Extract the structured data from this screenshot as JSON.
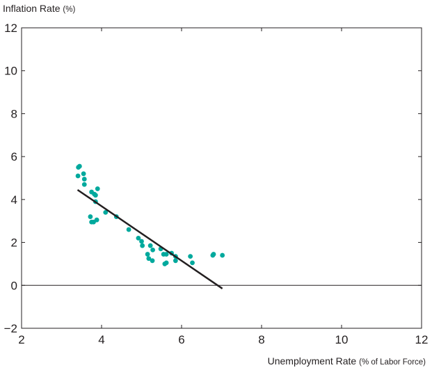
{
  "chart_data": {
    "type": "scatter",
    "ylabel": "Inflation Rate",
    "ylabel_unit": "(%)",
    "xlabel": "Unemployment Rate",
    "xlabel_unit": "(% of Labor Force)",
    "xlim": [
      2,
      12
    ],
    "ylim": [
      -2,
      12
    ],
    "x_ticks": [
      2,
      4,
      6,
      8,
      10,
      12
    ],
    "y_ticks": [
      -2,
      0,
      2,
      4,
      6,
      8,
      10,
      12
    ],
    "x_tick_labels": [
      "2",
      "4",
      "6",
      "8",
      "10",
      "12"
    ],
    "y_tick_labels": [
      "−2",
      "0",
      "2",
      "4",
      "6",
      "8",
      "10",
      "12"
    ],
    "grid": false,
    "zero_line": true,
    "point_color": "#00a99d",
    "line_color": "#231f20",
    "points": [
      {
        "x": 3.45,
        "y": 5.55
      },
      {
        "x": 3.42,
        "y": 5.5
      },
      {
        "x": 3.41,
        "y": 5.1
      },
      {
        "x": 3.55,
        "y": 5.2
      },
      {
        "x": 3.57,
        "y": 4.95
      },
      {
        "x": 3.57,
        "y": 4.7
      },
      {
        "x": 3.75,
        "y": 4.35
      },
      {
        "x": 3.9,
        "y": 4.5
      },
      {
        "x": 3.85,
        "y": 4.2
      },
      {
        "x": 3.82,
        "y": 4.25
      },
      {
        "x": 3.85,
        "y": 3.9
      },
      {
        "x": 4.1,
        "y": 3.4
      },
      {
        "x": 4.37,
        "y": 3.2
      },
      {
        "x": 3.72,
        "y": 3.2
      },
      {
        "x": 3.88,
        "y": 3.05
      },
      {
        "x": 3.8,
        "y": 2.95
      },
      {
        "x": 3.75,
        "y": 2.95
      },
      {
        "x": 4.68,
        "y": 2.6
      },
      {
        "x": 4.92,
        "y": 2.2
      },
      {
        "x": 5.0,
        "y": 2.05
      },
      {
        "x": 5.02,
        "y": 1.85
      },
      {
        "x": 5.22,
        "y": 1.85
      },
      {
        "x": 5.28,
        "y": 1.65
      },
      {
        "x": 5.48,
        "y": 1.7
      },
      {
        "x": 5.15,
        "y": 1.45
      },
      {
        "x": 5.55,
        "y": 1.45
      },
      {
        "x": 5.62,
        "y": 1.45
      },
      {
        "x": 5.75,
        "y": 1.5
      },
      {
        "x": 5.85,
        "y": 1.35
      },
      {
        "x": 5.18,
        "y": 1.25
      },
      {
        "x": 5.27,
        "y": 1.15
      },
      {
        "x": 5.85,
        "y": 1.15
      },
      {
        "x": 5.58,
        "y": 1.0
      },
      {
        "x": 5.62,
        "y": 1.05
      },
      {
        "x": 6.22,
        "y": 1.35
      },
      {
        "x": 6.27,
        "y": 1.05
      },
      {
        "x": 6.78,
        "y": 1.4
      },
      {
        "x": 6.8,
        "y": 1.45
      },
      {
        "x": 7.02,
        "y": 1.4
      }
    ],
    "trend_line": {
      "x": [
        3.4,
        7.02
      ],
      "y": [
        4.45,
        -0.15
      ]
    }
  }
}
